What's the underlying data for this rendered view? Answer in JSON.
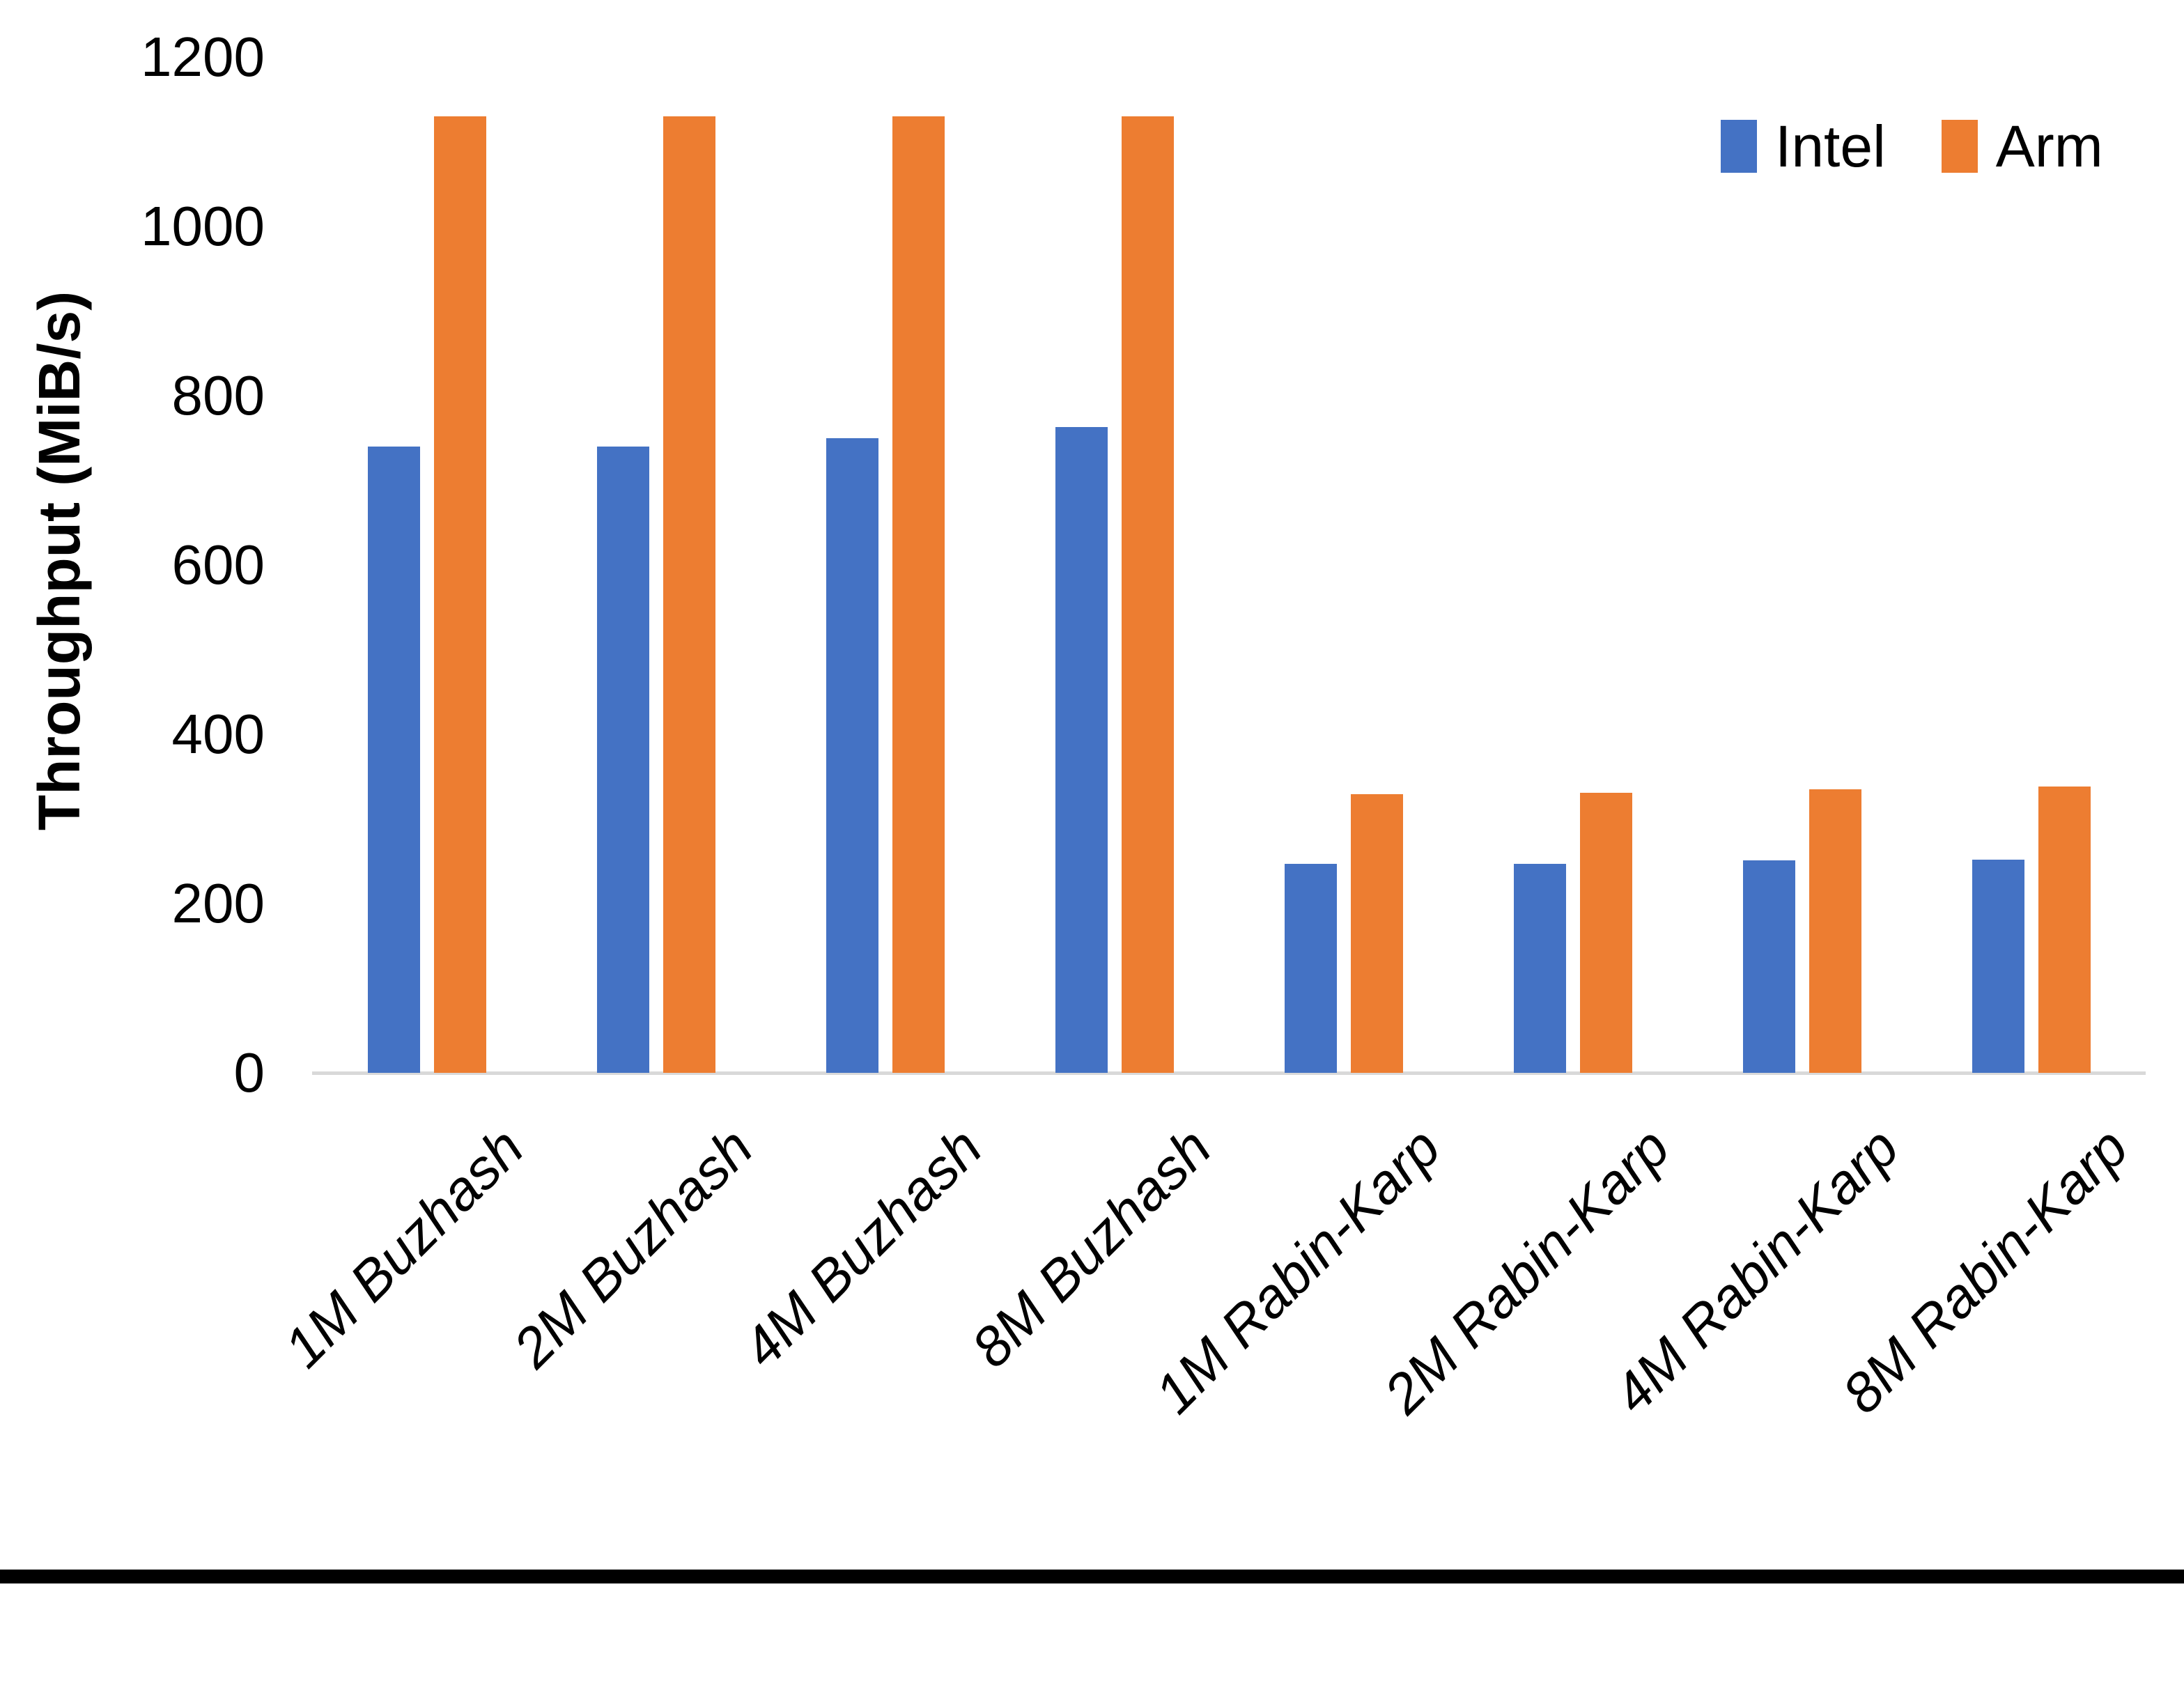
{
  "page": {
    "background": "#ffffff",
    "bottom_border_color": "#000000"
  },
  "chart_data": {
    "type": "bar",
    "title": "",
    "xlabel": "",
    "ylabel": "Throughput (MiB/s)",
    "categories": [
      "1M Buzhash",
      "2M Buzhash",
      "4M Buzhash",
      "8M Buzhash",
      "1M Rabin-Karp",
      "2M Rabin-Karp",
      "4M Rabin-Karp",
      "8M Rabin-Karp"
    ],
    "series": [
      {
        "name": "Intel",
        "color": "#4472C4",
        "values": [
          740,
          740,
          750,
          763,
          247,
          247,
          251,
          252
        ]
      },
      {
        "name": "Arm",
        "color": "#ED7D31",
        "values": [
          1130,
          1130,
          1130,
          1130,
          329,
          331,
          335,
          338
        ]
      }
    ],
    "ylim": [
      0,
      1200
    ],
    "yticks": [
      0,
      200,
      400,
      600,
      800,
      1000,
      1200
    ],
    "grid": false,
    "legend_position": "top-right",
    "axis_line_color": "#D9D9D9",
    "category_label_rotation_deg": -45,
    "category_label_style": "italic"
  }
}
